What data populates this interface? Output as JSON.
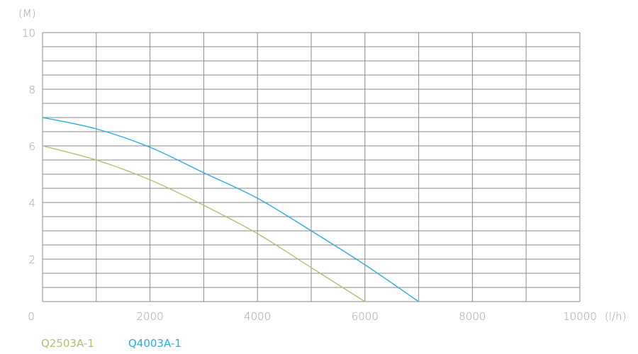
{
  "chart_data": {
    "type": "line",
    "title": "",
    "xlabel": "(l/h)",
    "ylabel": "(M)",
    "xlim": [
      0,
      10000
    ],
    "ylim": [
      0,
      10
    ],
    "grid": true,
    "legend_position": "bottom-left",
    "x_ticks": [
      "0",
      "2000",
      "4000",
      "6000",
      "8000",
      "10000"
    ],
    "y_ticks": [
      "2",
      "4",
      "6",
      "8",
      "10"
    ],
    "series": [
      {
        "name": "Q2503A-1",
        "color": "#a9c26f",
        "x": [
          0,
          1000,
          2000,
          3000,
          4000,
          5000,
          6000
        ],
        "y": [
          6.0,
          5.5,
          4.8,
          3.9,
          2.9,
          1.7,
          0.5
        ]
      },
      {
        "name": "Q4003A-1",
        "color": "#29abe2",
        "x": [
          0,
          1000,
          2000,
          3000,
          4000,
          5000,
          6000,
          7000
        ],
        "y": [
          7.0,
          6.6,
          5.95,
          5.05,
          4.15,
          3.0,
          1.8,
          0.5
        ]
      }
    ]
  }
}
